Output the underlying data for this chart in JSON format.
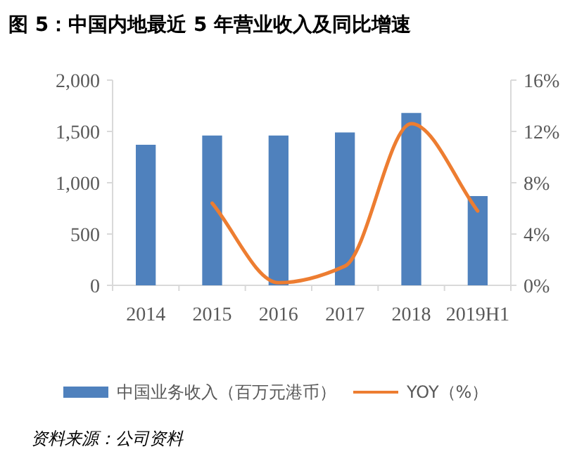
{
  "chart_data": {
    "type": "bar",
    "title": "图 5：中国内地最近 5 年营业收入及同比增速",
    "categories": [
      "2014",
      "2015",
      "2016",
      "2017",
      "2018",
      "2019H1"
    ],
    "series": [
      {
        "name": "中国业务收入（百万元港币）",
        "color": "#4f81bd",
        "values": [
          1370,
          1460,
          1460,
          1490,
          1680,
          870
        ]
      },
      {
        "name": "YOY（%）",
        "type": "line",
        "axis": "y2",
        "color": "#ed7d31",
        "values": [
          null,
          6.4,
          0.2,
          1.5,
          12.6,
          5.8
        ]
      }
    ],
    "ylim": [
      0,
      2000
    ],
    "yticks": [
      0,
      {
        "value": 500,
        "label": "500"
      },
      {
        "value": 1000,
        "label": "1,000"
      },
      {
        "value": 1500,
        "label": "1,500"
      },
      {
        "value": 2000,
        "label": "2,000"
      }
    ],
    "y2lim": [
      0,
      16
    ],
    "y2ticks": [
      {
        "value": 0,
        "label": "0%"
      },
      {
        "value": 4,
        "label": "4%"
      },
      {
        "value": 8,
        "label": "8%"
      },
      {
        "value": 12,
        "label": "12%"
      },
      {
        "value": 16,
        "label": "16%"
      }
    ],
    "legend": "bottom",
    "grid": false,
    "marker": "none",
    "annotations": [
      "资料来源：公司资料"
    ]
  }
}
